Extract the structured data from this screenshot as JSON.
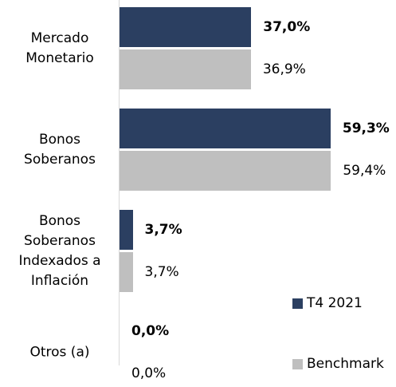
{
  "chart_data": {
    "type": "bar",
    "orientation": "horizontal",
    "categories": [
      "Mercado Monetario",
      "Bonos Soberanos",
      "Bonos Soberanos Indexados a Inflación",
      "Otros (a)"
    ],
    "series": [
      {
        "name": "T4 2021",
        "color": "#2b3f61",
        "values": [
          37.0,
          59.3,
          3.7,
          0.0
        ],
        "value_labels": [
          "37,0%",
          "59,3%",
          "3,7%",
          "0,0%"
        ]
      },
      {
        "name": "Benchmark",
        "color": "#bfbfbf",
        "values": [
          36.9,
          59.4,
          3.7,
          0.0
        ],
        "value_labels": [
          "36,9%",
          "59,4%",
          "3,7%",
          "0,0%"
        ]
      }
    ],
    "xlim": [
      0,
      60
    ],
    "legend": "right"
  }
}
